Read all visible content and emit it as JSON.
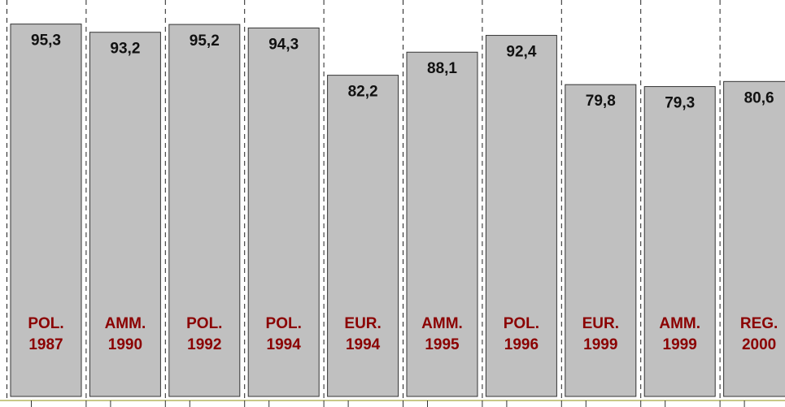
{
  "chart_data": {
    "type": "bar",
    "categories": [
      [
        "POL.",
        "1987"
      ],
      [
        "AMM.",
        "1990"
      ],
      [
        "POL.",
        "1992"
      ],
      [
        "POL.",
        "1994"
      ],
      [
        "EUR.",
        "1994"
      ],
      [
        "AMM.",
        "1995"
      ],
      [
        "POL.",
        "1996"
      ],
      [
        "EUR.",
        "1999"
      ],
      [
        "AMM.",
        "1999"
      ],
      [
        "REG.",
        "2000"
      ]
    ],
    "values": [
      95.3,
      93.2,
      95.2,
      94.3,
      82.2,
      88.1,
      92.4,
      79.8,
      79.3,
      80.6
    ],
    "value_labels": [
      "95,3",
      "93,2",
      "95,2",
      "94,3",
      "82,2",
      "88,1",
      "92,4",
      "79,8",
      "79,3",
      "80,6"
    ],
    "color": "#c0c0c0",
    "label_color": "#8b0000",
    "ylim": [
      0,
      100
    ]
  }
}
